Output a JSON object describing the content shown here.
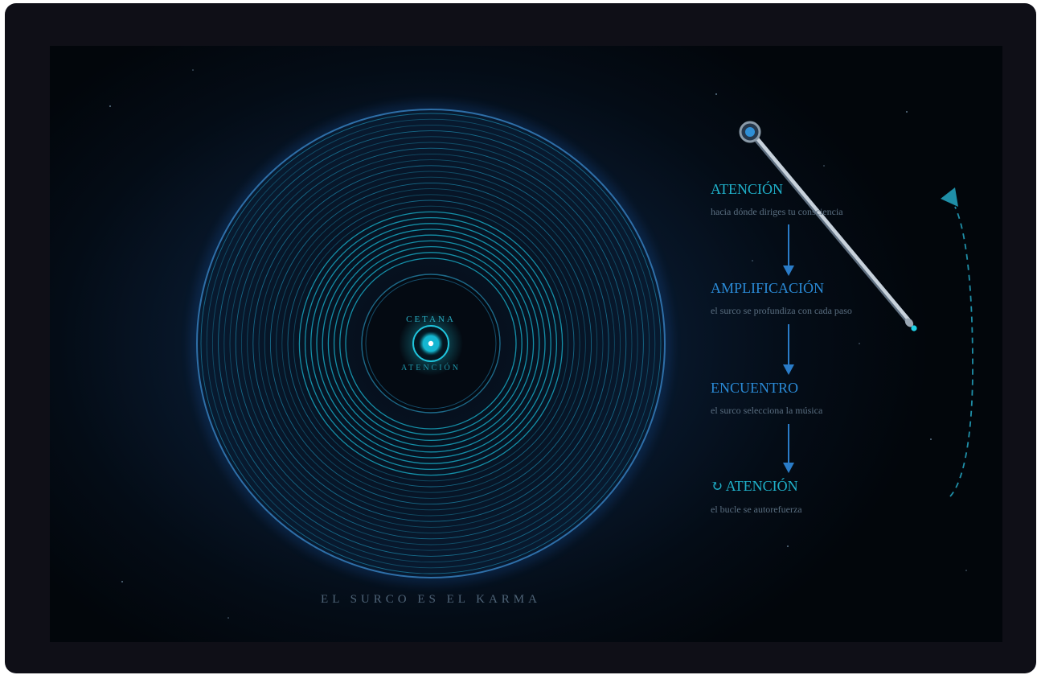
{
  "disc": {
    "center_top_label": "CETANA",
    "center_bottom_label": "ATENCIÓN",
    "caption": "EL SURCO ES EL KARMA"
  },
  "steps": [
    {
      "label": "ATENCIÓN",
      "desc": "hacia dónde diriges tu consciencia"
    },
    {
      "label": "AMPLIFICACIÓN",
      "desc": "el surco se profundiza con cada paso"
    },
    {
      "label": "ENCUENTRO",
      "desc": "el surco selecciona la música"
    },
    {
      "label": "ATENCIÓN",
      "desc": "el bucle se autorefuerza",
      "glyph": "↻"
    }
  ],
  "colors": {
    "cyan": "#1fb0c9",
    "blue": "#2a8ad6",
    "muted": "#5a6e80"
  }
}
